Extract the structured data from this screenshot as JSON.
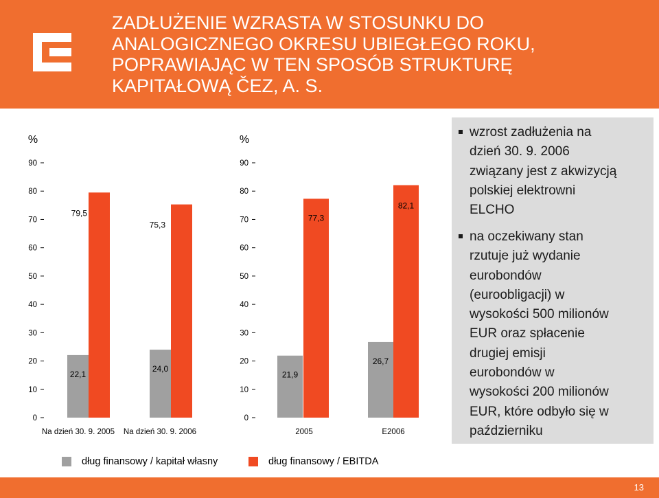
{
  "header": {
    "title_lines": [
      "ZADŁUŻENIE WZRASTA W STOSUNKU DO",
      "ANALOGICZNEGO OKRESU UBIEGŁEGO ROKU,",
      "POPRAWIAJĄC W TEN SPOSÓB STRUKTURĘ",
      "KAPITAŁOWĄ ČEZ, A. S."
    ]
  },
  "colors": {
    "header_bg": "#f06e2f",
    "bar_orange": "#f04a22",
    "bar_gray": "#a0a0a0",
    "bullet_bg": "#dcdcdc",
    "white": "#ffffff"
  },
  "chart_data": [
    {
      "type": "bar",
      "unit_label": "%",
      "categories": [
        "Na dzień 30. 9. 2005",
        "Na dzień 30. 9. 2006"
      ],
      "ylim": [
        0,
        90
      ],
      "yticks": [
        0,
        10,
        20,
        30,
        40,
        50,
        60,
        70,
        80,
        90
      ],
      "grid": false,
      "series": [
        {
          "name": "dług finansowy / kapitał własny",
          "color": "gray",
          "values": [
            22.1,
            24.0
          ],
          "labels": [
            "22,1",
            "24,0"
          ]
        },
        {
          "name": "dług finansowy / EBITDA",
          "color": "orange",
          "values": [
            79.5,
            75.3
          ],
          "labels": [
            "79,5",
            "75,3"
          ]
        }
      ]
    },
    {
      "type": "bar",
      "unit_label": "%",
      "categories": [
        "2005",
        "E2006"
      ],
      "ylim": [
        0,
        90
      ],
      "yticks": [
        0,
        10,
        20,
        30,
        40,
        50,
        60,
        70,
        80,
        90
      ],
      "grid": false,
      "series": [
        {
          "name": "dług finansowy / kapitał własny",
          "color": "gray",
          "values": [
            21.9,
            26.7
          ],
          "labels": [
            "21,9",
            "26,7"
          ]
        },
        {
          "name": "dług finansowy / EBITDA",
          "color": "orange",
          "values": [
            77.3,
            82.1
          ],
          "labels": [
            "77,3",
            "82,1"
          ]
        }
      ]
    }
  ],
  "legend": [
    {
      "label": "dług finansowy / kapitał własny",
      "color": "gray"
    },
    {
      "label": "dług finansowy / EBITDA",
      "color": "orange"
    }
  ],
  "bullets": [
    {
      "text_lines": [
        "wzrost zadłużenia na",
        "dzień 30. 9. 2006",
        "związany jest z akwizycją",
        "polskiej elektrowni",
        "ELCHO"
      ]
    },
    {
      "text_lines": [
        "na oczekiwany stan",
        "rzutuje już wydanie",
        "eurobondów",
        "(euroobligacji) w",
        "wysokości 500 milionów",
        "EUR oraz spłacenie",
        "drugiej emisji",
        "eurobondów w",
        "wysokości 200 milionów",
        "EUR, które odbyło się w",
        "październiku"
      ]
    }
  ],
  "footer": {
    "page_number": "13"
  }
}
